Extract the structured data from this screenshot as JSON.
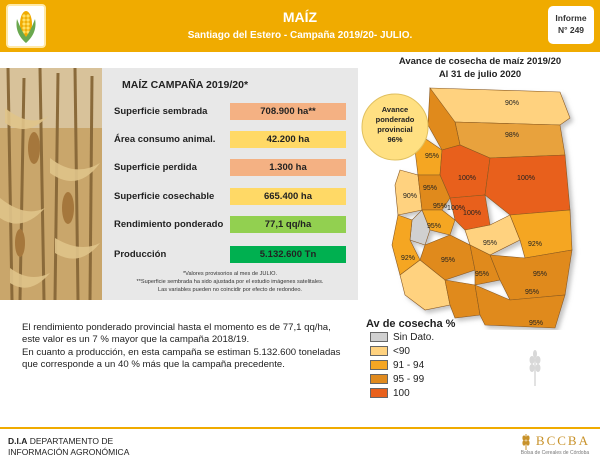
{
  "header": {
    "title": "MAÍZ",
    "subtitle": "Santiago del Estero - Campaña 2019/20- JULIO.",
    "report_label": "Informe",
    "report_number": "N° 249"
  },
  "table": {
    "title": "MAÍZ CAMPAÑA 2019/20*",
    "rows": [
      {
        "label": "Superficie sembrada",
        "value": "708.900 ha**",
        "color": "#f4b183"
      },
      {
        "label": "Área consumo animal.",
        "value": "42.200 ha",
        "color": "#ffd966"
      },
      {
        "label": "Superficie perdida",
        "value": "1.300 ha",
        "color": "#f4b183"
      },
      {
        "label": "Superficie cosechable",
        "value": "665.400 ha",
        "color": "#ffd966"
      },
      {
        "label": "Rendimiento ponderado",
        "value": "77,1 qq/ha",
        "color": "#92d050"
      },
      {
        "label": "Producción",
        "value": "5.132.600 Tn",
        "color": "#00b050"
      }
    ],
    "footnotes": [
      "*Valores provisorios al mes de JULIO.",
      "**Superficie sembrada ha sido ajustada por el estudio imágenes satelitales.",
      "Las variables pueden no coincidir por efecto de redondeo."
    ]
  },
  "paragraphs": [
    "El rendimiento ponderado provincial hasta el momento es de 77,1 qq/ha,",
    "este valor es un 7 % mayor que la campaña 2018/19.",
    "En cuanto a producción, en esta campaña se estiman 5.132.600 toneladas",
    "que corresponde a un 40 % más que la campaña precedente."
  ],
  "map": {
    "title_line1": "Avance de cosecha de maíz 2019/20",
    "title_line2": "Al 31 de julio 2020",
    "badge_line1": "Avance",
    "badge_line2": "ponderado",
    "badge_line3": "provincial",
    "badge_value": "96%",
    "labels": [
      "90%",
      "98%",
      "95%",
      "100%",
      "100%",
      "95%",
      "90%",
      "95%",
      "100%",
      "100%",
      "95%",
      "92%",
      "95%",
      "95%",
      "92%",
      "95%",
      "95%",
      "95%",
      "95%"
    ]
  },
  "legend": {
    "title": "Av de cosecha %",
    "items": [
      {
        "label": "Sin Dato.",
        "color": "#d0d0d0"
      },
      {
        "label": "<90",
        "color": "#ffd27f"
      },
      {
        "label": "91 - 94",
        "color": "#f5a623"
      },
      {
        "label": "95 - 99",
        "color": "#e08a1e"
      },
      {
        "label": "100",
        "color": "#e8601c"
      }
    ]
  },
  "footer": {
    "line1_bold": "D.I.A",
    "line1_rest": " DEPARTAMENTO DE",
    "line2": "INFORMACIÓN AGRONÓMICA",
    "brand": "BCCBA",
    "brand_sub": "Bolsa de Cereales de Córdoba"
  },
  "colors": {
    "accent": "#f0ab00"
  }
}
